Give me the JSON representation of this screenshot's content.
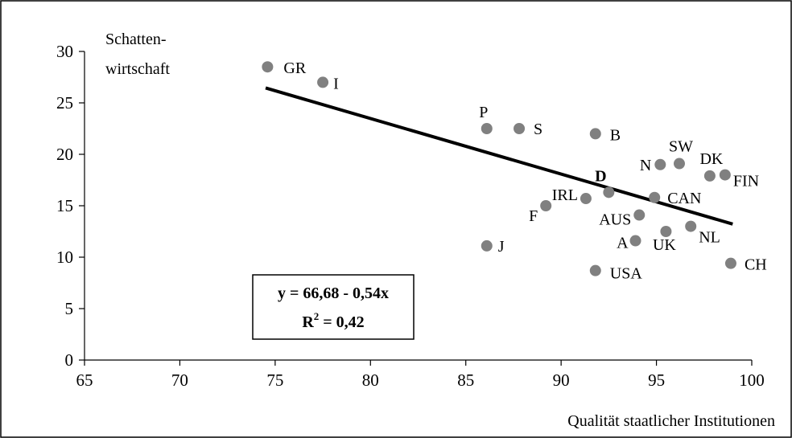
{
  "chart_data": {
    "type": "scatter",
    "xlabel": "Qualität staatlicher Institutionen",
    "ylabel_line1": "Schatten-",
    "ylabel_line2": "wirtschaft",
    "xlim": [
      65,
      100
    ],
    "ylim": [
      0,
      30
    ],
    "xticks": [
      65,
      70,
      75,
      80,
      85,
      90,
      95,
      100
    ],
    "yticks": [
      0,
      5,
      10,
      15,
      20,
      25,
      30
    ],
    "grid": false,
    "point_color": "#808080",
    "line_color": "#000000",
    "points": [
      {
        "label": "GR",
        "x": 74.6,
        "y": 28.5
      },
      {
        "label": "I",
        "x": 77.5,
        "y": 27.0
      },
      {
        "label": "P",
        "x": 86.1,
        "y": 22.5
      },
      {
        "label": "S",
        "x": 87.8,
        "y": 22.5
      },
      {
        "label": "B",
        "x": 91.8,
        "y": 22.0
      },
      {
        "label": "SW",
        "x": 96.2,
        "y": 19.1
      },
      {
        "label": "N",
        "x": 95.2,
        "y": 19.0
      },
      {
        "label": "DK",
        "x": 97.8,
        "y": 17.9
      },
      {
        "label": "FIN",
        "x": 98.6,
        "y": 18.0
      },
      {
        "label": "D",
        "x": 92.5,
        "y": 16.3,
        "bold": true
      },
      {
        "label": "IRL",
        "x": 91.3,
        "y": 15.7
      },
      {
        "label": "CAN",
        "x": 94.9,
        "y": 15.8
      },
      {
        "label": "F",
        "x": 89.2,
        "y": 15.0
      },
      {
        "label": "AUS",
        "x": 94.1,
        "y": 14.1
      },
      {
        "label": "NL",
        "x": 96.8,
        "y": 13.0
      },
      {
        "label": "UK",
        "x": 95.5,
        "y": 12.5
      },
      {
        "label": "A",
        "x": 93.9,
        "y": 11.6
      },
      {
        "label": "J",
        "x": 86.1,
        "y": 11.1
      },
      {
        "label": "CH",
        "x": 98.9,
        "y": 9.4
      },
      {
        "label": "USA",
        "x": 91.8,
        "y": 8.7
      }
    ],
    "trendline": {
      "x": [
        74.5,
        99.0
      ],
      "intercept": 66.68,
      "slope": -0.54
    },
    "equation": {
      "line1": "y = 66,68 - 0,54x",
      "line2_prefix": "R",
      "line2_sup": "2",
      "line2_suffix": " = 0,42"
    }
  }
}
